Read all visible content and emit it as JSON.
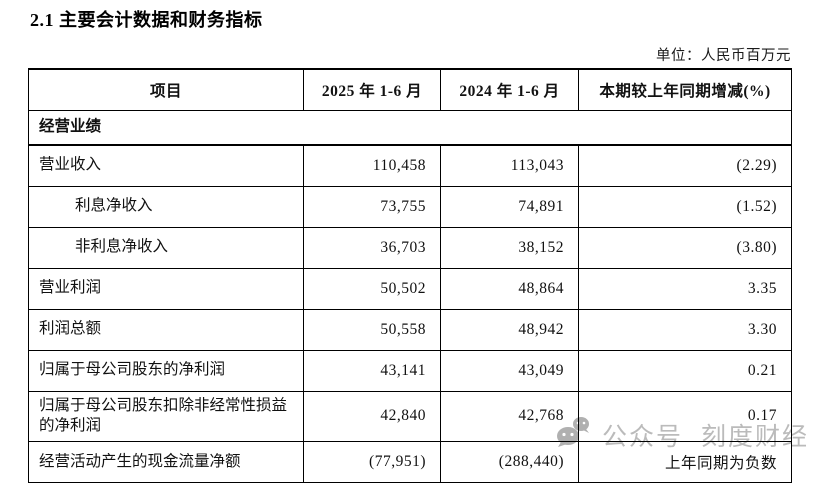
{
  "page": {
    "title": "2.1 主要会计数据和财务指标",
    "unit_note": "单位：人民币百万元"
  },
  "table": {
    "headers": [
      "项目",
      "2025 年 1-6 月",
      "2024 年 1-6 月",
      "本期较上年同期增减(%)"
    ],
    "rows": [
      {
        "type": "section",
        "label": "经营业绩"
      },
      {
        "type": "data",
        "label": "营业收入",
        "indent": false,
        "v2025": "110,458",
        "v2024": "113,043",
        "change": "(2.29)"
      },
      {
        "type": "data",
        "label": "利息净收入",
        "indent": true,
        "v2025": "73,755",
        "v2024": "74,891",
        "change": "(1.52)"
      },
      {
        "type": "data",
        "label": "非利息净收入",
        "indent": true,
        "v2025": "36,703",
        "v2024": "38,152",
        "change": "(3.80)"
      },
      {
        "type": "data",
        "label": "营业利润",
        "indent": false,
        "v2025": "50,502",
        "v2024": "48,864",
        "change": "3.35"
      },
      {
        "type": "data",
        "label": "利润总额",
        "indent": false,
        "v2025": "50,558",
        "v2024": "48,942",
        "change": "3.30"
      },
      {
        "type": "data",
        "label": "归属于母公司股东的净利润",
        "indent": false,
        "v2025": "43,141",
        "v2024": "43,049",
        "change": "0.21"
      },
      {
        "type": "data",
        "label": "归属于母公司股东扣除非经常性损益的净利润",
        "indent": false,
        "v2025": "42,840",
        "v2024": "42,768",
        "change": "0.17"
      },
      {
        "type": "data",
        "label": "经营活动产生的现金流量净额",
        "indent": false,
        "v2025": "(77,951)",
        "v2024": "(288,440)",
        "change": "上年同期为负数"
      }
    ]
  },
  "watermark": {
    "icon": "wechat-icon",
    "label_1": "公众号",
    "label_2": "刻度财经",
    "color": "#b0b0b0"
  }
}
